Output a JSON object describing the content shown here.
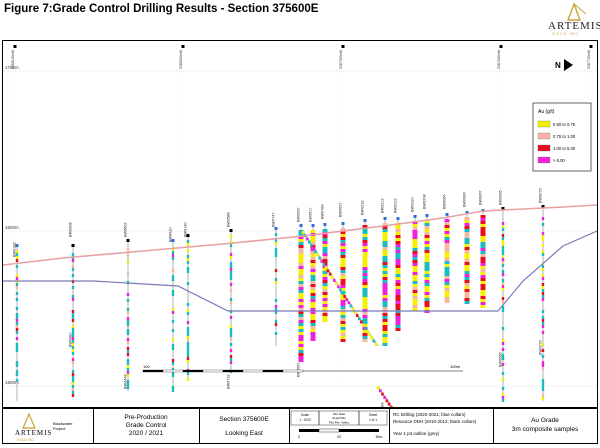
{
  "figure_title": "Figure 7:Grade Control Drilling Results - Section 375600E",
  "logo": {
    "name": "ARTEMIS",
    "sub": "GOLD INC"
  },
  "north_label": "N",
  "elevations": [
    "1700m",
    "1600m",
    "1500m"
  ],
  "grid_eastings": [
    "5388100mN",
    "5388000mN",
    "5387900mN",
    "5387800mN",
    "5387700mN"
  ],
  "legend": {
    "title": "Au (g/t)",
    "items": [
      {
        "label": "0.50 to 0.75",
        "color": "#f5f000"
      },
      {
        "label": "0.75 to 1.00",
        "color": "#f4b8a0"
      },
      {
        "label": "1.00 to 5.00",
        "color": "#e8101c"
      },
      {
        "label": "> 5.00",
        "color": "#ee22dd"
      }
    ]
  },
  "colors": {
    "topo": "#e8a0a0",
    "pit": "#7a7ab8",
    "blue_collar": "#2e6fd8",
    "black_collar": "#000000",
    "hole": "#a0a0a0",
    "composite_grey": "#1abcc0"
  },
  "hole_labels": [
    "BW0183",
    "BW0608",
    "BW0602",
    "BW0620",
    "BW0140",
    "BW0588",
    "BW0747",
    "BW0637",
    "BW0517",
    "BW0789",
    "BW0637",
    "BW0232",
    "BW0212",
    "BW0222",
    "BW0220",
    "BW0208",
    "BW0064",
    "BW0089",
    "BW0067",
    "BW0005",
    "BW0075",
    "BW0087",
    "BW0566",
    "BW0079",
    "BW0083",
    "BW0732",
    "BW0567",
    "BW0448"
  ],
  "scale_bar": {
    "left": "100",
    "right": "100m"
  },
  "title_block": {
    "company": "ARTEMIS",
    "company_sub": "GOLD INC",
    "project_line1": "Blackwater",
    "project_line2": "Project",
    "phase_line1": "Pre-Production",
    "phase_line2": "Grade Control",
    "phase_line3": "2020 / 2021",
    "section": "Section 375600E",
    "looking": "Looking East",
    "scale_label": "Scale",
    "scale_value": "1 : 1000",
    "plot_date_label": "Plot Date",
    "plot_date_value": "Sept/2021",
    "plot_file_label": "Plot File: Valley",
    "sheet_label": "Sheet",
    "sheet_value": "1 of 1",
    "bar_0": "0",
    "bar_mid": "20",
    "bar_end": "50m",
    "notes_line1": "RC Drilling (2020-2021; blue collars)",
    "notes_line2": "Resource DDH (2010-2012; black collars)",
    "notes_line3": "Year 1 pit outline (grey)",
    "grade_line1": "Au Grade",
    "grade_line2": "3m composite samples"
  }
}
